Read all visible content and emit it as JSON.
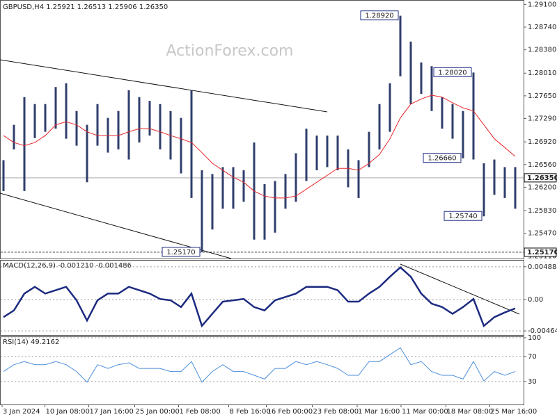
{
  "chart_data": [
    {
      "type": "range-bar",
      "title": "GBPUSD,H4 1.25921 1.26513 1.25906 1.26350",
      "watermark": "ActionForex.com",
      "xlim": [
        0,
        49
      ],
      "ylim": [
        1.2507,
        1.2917
      ],
      "yticks": [
        {
          "value": 1.291,
          "label": "1.29100"
        },
        {
          "value": 1.2874,
          "label": "1.28740"
        },
        {
          "value": 1.2838,
          "label": "1.28380"
        },
        {
          "value": 1.2801,
          "label": "1.28010"
        },
        {
          "value": 1.2765,
          "label": "1.27650"
        },
        {
          "value": 1.2729,
          "label": "1.27290"
        },
        {
          "value": 1.2692,
          "label": "1.26920"
        },
        {
          "value": 1.2656,
          "label": "1.26560"
        },
        {
          "value": 1.262,
          "label": "1.26200"
        },
        {
          "value": 1.2583,
          "label": "1.25830"
        },
        {
          "value": 1.2547,
          "label": "1.25470"
        },
        {
          "value": 1.2511,
          "label": "1.25110"
        }
      ],
      "color": "#2f3e6b",
      "ma_color": "#e8262b",
      "high": [
        1.2663,
        1.2719,
        1.2763,
        1.2752,
        1.2752,
        1.2779,
        1.2785,
        1.2741,
        1.2719,
        1.2752,
        1.273,
        1.2741,
        1.2774,
        1.2763,
        1.2757,
        1.2752,
        1.2741,
        1.273,
        1.2774,
        1.2647,
        1.2641,
        1.2652,
        1.2652,
        1.2647,
        1.2691,
        1.2625,
        1.263,
        1.2641,
        1.2674,
        1.2713,
        1.2702,
        1.2702,
        1.2702,
        1.268,
        1.2663,
        1.2708,
        1.2752,
        1.2785,
        1.2892,
        1.2851,
        1.2818,
        1.2812,
        1.2763,
        1.2752,
        1.2741,
        1.2802,
        1.2658,
        1.2664,
        1.2652,
        1.2652
      ],
      "low": [
        1.2614,
        1.268,
        1.2614,
        1.2698,
        1.2708,
        1.2713,
        1.2697,
        1.2686,
        1.2628,
        1.2686,
        1.2675,
        1.268,
        1.2664,
        1.2691,
        1.2702,
        1.268,
        1.2664,
        1.2642,
        1.2603,
        1.2517,
        1.2553,
        1.2586,
        1.2586,
        1.2597,
        1.2537,
        1.2537,
        1.2548,
        1.2586,
        1.2597,
        1.263,
        1.2647,
        1.2652,
        1.2647,
        1.262,
        1.2603,
        1.2652,
        1.268,
        1.2708,
        1.2796,
        1.2752,
        1.2768,
        1.2741,
        1.2713,
        1.2697,
        1.2666,
        1.2664,
        1.2574,
        1.2608,
        1.2603,
        1.2586
      ],
      "ma": [
        1.2702,
        1.2691,
        1.2686,
        1.2691,
        1.2702,
        1.2719,
        1.2724,
        1.2719,
        1.2708,
        1.2702,
        1.2702,
        1.2702,
        1.2708,
        1.2713,
        1.2713,
        1.2708,
        1.2702,
        1.2697,
        1.2691,
        1.2675,
        1.2658,
        1.2647,
        1.2636,
        1.2628,
        1.2614,
        1.2606,
        1.2603,
        1.2603,
        1.2606,
        1.2617,
        1.2628,
        1.2639,
        1.265,
        1.265,
        1.2647,
        1.2658,
        1.2672,
        1.2697,
        1.273,
        1.2752,
        1.276,
        1.2766,
        1.2763,
        1.2754,
        1.2746,
        1.2741,
        1.2719,
        1.2697,
        1.2683,
        1.2669
      ],
      "last": {
        "value": 1.2635,
        "label": "1.26350"
      },
      "annotations": [
        {
          "value": 1.2892,
          "label": "1.28920",
          "x": 38
        },
        {
          "value": 1.2802,
          "label": "1.28020",
          "x": 45
        },
        {
          "value": 1.2666,
          "label": "1.26660",
          "x": 44
        },
        {
          "value": 1.2574,
          "label": "1.25740",
          "x": 46
        },
        {
          "value": 1.2517,
          "label": "1.25170",
          "x": 19,
          "level": true
        }
      ]
    },
    {
      "type": "line",
      "title": "MACD(12,26,9) -0.001210 -0.001486",
      "color": "#1c2a80",
      "ylim": [
        -0.00525,
        0.00559
      ],
      "yticks": [
        0.004884,
        {
          "value": 0,
          "label": "0.00"
        },
        -0.004645
      ],
      "values": [
        -0.0026,
        -0.0016,
        0.0009,
        0.0019,
        0.0009,
        0.0014,
        0.0019,
        -0.0001,
        -0.0031,
        -0.0001,
        0.0009,
        0.0009,
        0.0019,
        0.0014,
        0.0009,
        0.0001,
        -0.0001,
        -0.0011,
        0.0009,
        -0.0039,
        -0.0021,
        -0.0003,
        -0.0001,
        0.0001,
        -0.0011,
        -0.0016,
        -0.0001,
        0.0004,
        0.0009,
        0.0019,
        0.0019,
        0.0019,
        0.0014,
        -0.0003,
        -0.0003,
        0.0009,
        0.0019,
        0.0034,
        0.0048,
        0.0034,
        0.0009,
        -0.0006,
        -0.0011,
        -0.0021,
        -0.0011,
        0.0001,
        -0.0039,
        -0.0026,
        -0.0019,
        -0.0013
      ]
    },
    {
      "type": "line",
      "title": "RSI(14) 49.2162",
      "color": "#4d8fdb",
      "ylim": [
        0,
        100
      ],
      "yticks": [
        100,
        70,
        30
      ],
      "values": [
        46,
        57,
        62,
        57,
        57,
        62,
        57,
        46,
        29,
        57,
        51,
        57,
        60,
        51,
        51,
        51,
        46,
        46,
        62,
        29,
        46,
        57,
        46,
        46,
        40,
        34,
        51,
        51,
        62,
        57,
        62,
        57,
        51,
        40,
        40,
        62,
        62,
        73,
        84,
        57,
        62,
        46,
        40,
        40,
        34,
        62,
        31,
        46,
        40,
        46
      ],
      "xticks": [
        {
          "value": 0,
          "label": "3 Jan 2024"
        },
        {
          "value": 4.1,
          "label": "10 Jan 08:00"
        },
        {
          "value": 8.3,
          "label": "17 Jan 16:00"
        },
        {
          "value": 12.7,
          "label": "25 Jan 00:00"
        },
        {
          "value": 16.9,
          "label": "1 Feb 08:00"
        },
        {
          "value": 21.7,
          "label": "8 Feb 16:00"
        },
        {
          "value": 25.3,
          "label": "16 Feb 00:00"
        },
        {
          "value": 29.7,
          "label": "23 Feb 08:00"
        },
        {
          "value": 34,
          "label": "1 Mar 16:00"
        },
        {
          "value": 38.2,
          "label": "11 Mar 00:00"
        },
        {
          "value": 42.5,
          "label": "18 Mar 08:00"
        },
        {
          "value": 46.7,
          "label": "25 Mar 16:00"
        }
      ]
    }
  ]
}
